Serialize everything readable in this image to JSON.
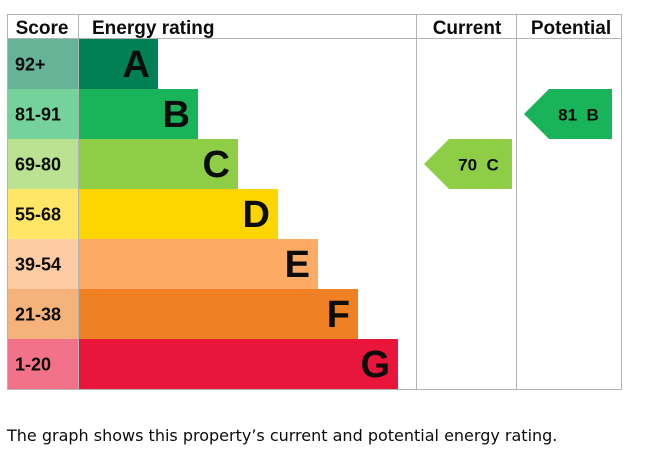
{
  "chart_data": {
    "type": "bar",
    "headers": {
      "score": "Score",
      "rating": "Energy rating",
      "current": "Current",
      "potential": "Potential"
    },
    "bands": [
      {
        "letter": "A",
        "score_range": "92+",
        "color": "#008054",
        "score_color": "#66b398"
      },
      {
        "letter": "B",
        "score_range": "81-91",
        "color": "#19b459",
        "score_color": "#75d29b"
      },
      {
        "letter": "C",
        "score_range": "69-80",
        "color": "#8dce46",
        "score_color": "#bbe290"
      },
      {
        "letter": "D",
        "score_range": "55-68",
        "color": "#ffd500",
        "score_color": "#ffe666"
      },
      {
        "letter": "E",
        "score_range": "39-54",
        "color": "#fcaa65",
        "score_color": "#fdcca3"
      },
      {
        "letter": "F",
        "score_range": "21-38",
        "color": "#ef8023",
        "score_color": "#f5b37b"
      },
      {
        "letter": "G",
        "score_range": "1-20",
        "color": "#e9153b",
        "score_color": "#f27389"
      }
    ],
    "current": {
      "value": 70,
      "band": "C",
      "label": "70  C",
      "color": "#8dce46"
    },
    "potential": {
      "value": 81,
      "band": "B",
      "label": "81  B",
      "color": "#19b459"
    }
  },
  "caption": "The graph shows this property’s current and potential energy rating."
}
